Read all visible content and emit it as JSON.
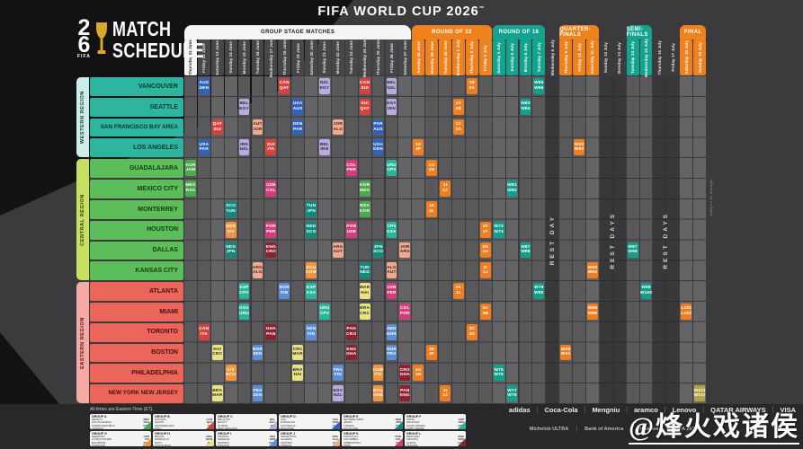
{
  "title": "FIFA WORLD CUP 2026",
  "title_tm": "™",
  "logo": {
    "number_top": "2",
    "number_bottom": "6",
    "fifa": "FIFA",
    "line1": "MATCH",
    "line2": "SCHEDULE"
  },
  "note": "All times are Eastern Time (ET).",
  "footnote": "Subject to change",
  "watermark": "@烽火戏诸侯",
  "colors": {
    "stage_orange": "#f0821e",
    "stage_teal": "#13a38f",
    "stage_white": "#f5f5f3",
    "group_date_box": "#47474a",
    "groups": {
      "A": "#4ea84e",
      "B": "#d8423c",
      "C": "#b9abdf",
      "D": "#2e62bc",
      "E": "#0f8b7e",
      "F": "#27b79b",
      "G": "#f0953c",
      "H": "#e9e381",
      "I": "#5a8ed8",
      "J": "#f2a98e",
      "K": "#d63b7c",
      "L": "#8c2130",
      "R32": "#f07d20",
      "R16": "#12a08d",
      "QF": "#f07d20",
      "SF": "#12a08d",
      "BRZ": "#f07d20",
      "FIN": "#b2a440"
    },
    "dark_text_groups": [
      "C",
      "H",
      "J"
    ],
    "regions": {
      "western": {
        "bar": "#cdecea",
        "barText": "#14443f",
        "cell": "#2eb5a0",
        "cellText": "#07382e"
      },
      "central": {
        "bar": "#c8e061",
        "barText": "#2c420b",
        "cell": "#5cbd5a",
        "cellText": "#12400f"
      },
      "eastern": {
        "bar": "#f4a9a2",
        "barText": "#571511",
        "cell": "#eb655b",
        "cellText": "#4b0f0c"
      }
    }
  },
  "schedule": {
    "columns": [
      "Thursday 11 June",
      "Friday 12 June",
      "Saturday 13 June",
      "Sunday 14 June",
      "Monday 15 June",
      "Tuesday 16 June",
      "Wednesday 17 June",
      "Thursday 18 June",
      "Friday 19 June",
      "Saturday 20 June",
      "Sunday 21 June",
      "Monday 22 June",
      "Tuesday 23 June",
      "Wednesday 24 June",
      "Thursday 25 June",
      "Friday 26 June",
      "Saturday 27 June",
      "Sunday 28 June",
      "Monday 29 June",
      "Tuesday 30 June",
      "Wednesday 1 July",
      "Thursday 2 July",
      "Friday 3 July",
      "Saturday 4 July",
      "Sunday 5 July",
      "Monday 6 July",
      "Tuesday 7 July",
      "Wednesday 8 July",
      "Thursday 9 July",
      "Friday 10 July",
      "Saturday 11 July",
      "Sunday 12 July",
      "Monday 13 July",
      "Tuesday 14 July",
      "Wednesday 15 July",
      "Thursday 16 July",
      "Friday 17 July",
      "Saturday 18 July",
      "Sunday 19 July"
    ],
    "weekend_cols": [
      2,
      3,
      9,
      10,
      16,
      17,
      23,
      24,
      30,
      31,
      37,
      38
    ],
    "highlight_col": 0,
    "stages": [
      {
        "label": "GROUP STAGE MATCHES",
        "from": 0,
        "to": 16,
        "style": "white"
      },
      {
        "label": "ROUND OF 32",
        "from": 17,
        "to": 22,
        "style": "orange"
      },
      {
        "label": "ROUND OF 16",
        "from": 23,
        "to": 26,
        "style": "teal"
      },
      {
        "label": "QUARTER-FINALS",
        "from": 28,
        "to": 30,
        "style": "orange"
      },
      {
        "label": "SEMI-FINALS",
        "from": 33,
        "to": 34,
        "style": "teal"
      },
      {
        "label": "FINAL",
        "from": 37,
        "to": 38,
        "style": "orange"
      }
    ],
    "rest": [
      {
        "label": "REST DAY",
        "from": 27,
        "to": 27
      },
      {
        "label": "REST DAYS",
        "from": 31,
        "to": 32
      },
      {
        "label": "REST DAYS",
        "from": 35,
        "to": 36
      }
    ],
    "regions": [
      {
        "key": "western",
        "label": "WESTERN REGION",
        "cities": [
          "VANCOUVER",
          "SEATTLE",
          "SAN FRANCISCO BAY AREA",
          "LOS ANGELES"
        ]
      },
      {
        "key": "central",
        "label": "CENTRAL REGION",
        "cities": [
          "GUADALAJARA",
          "MEXICO CITY",
          "MONTERREY",
          "HOUSTON",
          "DALLAS",
          "KANSAS CITY"
        ]
      },
      {
        "key": "eastern",
        "label": "EASTERN REGION",
        "cities": [
          "ATLANTA",
          "MIAMI",
          "TORONTO",
          "BOSTON",
          "PHILADELPHIA",
          "NEW YORK NEW JERSEY"
        ]
      }
    ],
    "cells": [
      [
        0,
        1,
        "D",
        "AUS",
        "DEN"
      ],
      [
        0,
        7,
        "B",
        "CAN",
        "QAT"
      ],
      [
        0,
        10,
        "C",
        "NZL",
        "EGY"
      ],
      [
        0,
        13,
        "B",
        "CAN",
        "SUI"
      ],
      [
        0,
        15,
        "C",
        "BEL",
        "NZL"
      ],
      [
        0,
        21,
        "R32",
        "1B",
        "2A"
      ],
      [
        0,
        26,
        "R16",
        "W85",
        "W86"
      ],
      [
        1,
        4,
        "C",
        "BEL",
        "EGY"
      ],
      [
        1,
        8,
        "D",
        "USA",
        "AUS"
      ],
      [
        1,
        13,
        "B",
        "SUI",
        "QAT"
      ],
      [
        1,
        15,
        "C",
        "EGY",
        "IRN"
      ],
      [
        1,
        20,
        "R32",
        "1A",
        "2B"
      ],
      [
        1,
        25,
        "R16",
        "W83",
        "W84"
      ],
      [
        2,
        2,
        "B",
        "QAT",
        "SUI"
      ],
      [
        2,
        5,
        "J",
        "AUT",
        "JOR"
      ],
      [
        2,
        8,
        "D",
        "DEN",
        "PAR"
      ],
      [
        2,
        11,
        "J",
        "JOR",
        "ALG"
      ],
      [
        2,
        14,
        "D",
        "PAR",
        "AUS"
      ],
      [
        2,
        20,
        "R32",
        "1C",
        "2D"
      ],
      [
        3,
        1,
        "D",
        "USA",
        "PAR"
      ],
      [
        3,
        4,
        "C",
        "IRN",
        "NZL"
      ],
      [
        3,
        6,
        "B",
        "SUI",
        "ITA"
      ],
      [
        3,
        10,
        "C",
        "BEL",
        "IRN"
      ],
      [
        3,
        14,
        "D",
        "USA",
        "DEN"
      ],
      [
        3,
        17,
        "R32",
        "1E",
        "2F"
      ],
      [
        3,
        29,
        "QF",
        "W90",
        "W92"
      ],
      [
        4,
        0,
        "A",
        "KOR",
        "JAM"
      ],
      [
        4,
        12,
        "K",
        "COL",
        "PER"
      ],
      [
        4,
        15,
        "F",
        "URU",
        "CPV"
      ],
      [
        4,
        18,
        "R32",
        "1G",
        "2H"
      ],
      [
        5,
        0,
        "A",
        "MEX",
        "RSA"
      ],
      [
        5,
        6,
        "K",
        "UZB",
        "COL"
      ],
      [
        5,
        13,
        "A",
        "KOR",
        "MEX"
      ],
      [
        5,
        19,
        "R32",
        "1I",
        "2J"
      ],
      [
        5,
        24,
        "R16",
        "W81",
        "W82"
      ],
      [
        6,
        3,
        "E",
        "SCO",
        "TUN"
      ],
      [
        6,
        9,
        "E",
        "TUN",
        "JPN"
      ],
      [
        6,
        13,
        "A",
        "RSA",
        "KOR"
      ],
      [
        6,
        18,
        "R32",
        "1K",
        "2L"
      ],
      [
        7,
        3,
        "G",
        "GER",
        "CIV"
      ],
      [
        7,
        6,
        "K",
        "POR",
        "PER"
      ],
      [
        7,
        9,
        "E",
        "NED",
        "SCO"
      ],
      [
        7,
        12,
        "K",
        "POR",
        "UZB"
      ],
      [
        7,
        15,
        "F",
        "CPV",
        "KSA"
      ],
      [
        7,
        22,
        "R32",
        "2E",
        "1F"
      ],
      [
        7,
        23,
        "R16",
        "W73",
        "W74"
      ],
      [
        8,
        3,
        "E",
        "NED",
        "JPN"
      ],
      [
        8,
        6,
        "L",
        "ENG",
        "CRO"
      ],
      [
        8,
        11,
        "J",
        "ARG",
        "AUT"
      ],
      [
        8,
        14,
        "E",
        "JPN",
        "SCO"
      ],
      [
        8,
        16,
        "J",
        "JOR",
        "ARG"
      ],
      [
        8,
        22,
        "R32",
        "2G",
        "1H"
      ],
      [
        8,
        25,
        "R16",
        "W87",
        "W88"
      ],
      [
        8,
        33,
        "SF",
        "W97",
        "W98"
      ],
      [
        9,
        5,
        "J",
        "ARG",
        "ALG"
      ],
      [
        9,
        9,
        "G",
        "ECU",
        "CUW"
      ],
      [
        9,
        13,
        "E",
        "TUN",
        "NED"
      ],
      [
        9,
        15,
        "J",
        "ALG",
        "AUT"
      ],
      [
        9,
        22,
        "R32",
        "2I",
        "1J"
      ],
      [
        9,
        30,
        "QF",
        "W93",
        "W94"
      ],
      [
        10,
        4,
        "F",
        "ESP",
        "CPV"
      ],
      [
        10,
        7,
        "I",
        "NOR",
        "FIN"
      ],
      [
        10,
        9,
        "F",
        "ESP",
        "KSA"
      ],
      [
        10,
        13,
        "H",
        "MAR",
        "HAI"
      ],
      [
        10,
        15,
        "K",
        "UZB",
        "PER"
      ],
      [
        10,
        20,
        "R32",
        "2K",
        "1L"
      ],
      [
        10,
        26,
        "R16",
        "W79",
        "W80"
      ],
      [
        10,
        34,
        "SF",
        "W99",
        "W100"
      ],
      [
        11,
        4,
        "F",
        "KSA",
        "URU"
      ],
      [
        11,
        10,
        "F",
        "URU",
        "CPV"
      ],
      [
        11,
        13,
        "H",
        "BRA",
        "CRC"
      ],
      [
        11,
        16,
        "K",
        "COL",
        "POR"
      ],
      [
        11,
        22,
        "R32",
        "3A",
        "3B"
      ],
      [
        11,
        30,
        "QF",
        "W95",
        "W96"
      ],
      [
        11,
        37,
        "BRZ",
        "L101",
        "L102"
      ],
      [
        12,
        1,
        "B",
        "CAN",
        "ITA"
      ],
      [
        12,
        6,
        "L",
        "GHA",
        "PAN"
      ],
      [
        12,
        9,
        "I",
        "SEN",
        "FIN"
      ],
      [
        12,
        12,
        "L",
        "PAN",
        "CRO"
      ],
      [
        12,
        15,
        "I",
        "SEN",
        "NOR"
      ],
      [
        12,
        21,
        "R32",
        "3C",
        "3D"
      ],
      [
        13,
        2,
        "H",
        "HAI",
        "CRC"
      ],
      [
        13,
        5,
        "I",
        "NOR",
        "SEN"
      ],
      [
        13,
        8,
        "H",
        "CRC",
        "MAR"
      ],
      [
        13,
        12,
        "L",
        "ENG",
        "GHA"
      ],
      [
        13,
        15,
        "I",
        "NOR",
        "FRA"
      ],
      [
        13,
        18,
        "R32",
        "3E",
        "3F"
      ],
      [
        13,
        28,
        "QF",
        "W89",
        "W91"
      ],
      [
        14,
        3,
        "G",
        "CIV",
        "ECU"
      ],
      [
        14,
        8,
        "H",
        "BRA",
        "HAI"
      ],
      [
        14,
        11,
        "I",
        "FRA",
        "FIN"
      ],
      [
        14,
        14,
        "G",
        "CUW",
        "CIV"
      ],
      [
        14,
        16,
        "L",
        "CRO",
        "GHA"
      ],
      [
        14,
        17,
        "R32",
        "3G",
        "3H"
      ],
      [
        14,
        23,
        "R16",
        "W75",
        "W76"
      ],
      [
        15,
        2,
        "H",
        "BRA",
        "MAR"
      ],
      [
        15,
        5,
        "I",
        "FRA",
        "SEN"
      ],
      [
        15,
        11,
        "C",
        "EGY",
        "NZL"
      ],
      [
        15,
        14,
        "G",
        "ECU",
        "GER"
      ],
      [
        15,
        16,
        "L",
        "PAN",
        "ENG"
      ],
      [
        15,
        19,
        "R32",
        "3I",
        "3J"
      ],
      [
        15,
        24,
        "R16",
        "W77",
        "W78"
      ],
      [
        15,
        38,
        "FIN",
        "W101",
        "W102"
      ]
    ]
  },
  "legend": {
    "groups": [
      {
        "label": "GROUP A",
        "g": "A",
        "teams": [
          [
            "MEXICO",
            "MEX"
          ],
          [
            "SOUTH AFRICA",
            "RSA"
          ],
          [
            "KOREA REPUBLIC",
            "KOR"
          ],
          [
            "JAMAICA",
            "JAM"
          ]
        ]
      },
      {
        "label": "GROUP B",
        "g": "B",
        "teams": [
          [
            "CANADA",
            "CAN"
          ],
          [
            "QATAR",
            "QAT"
          ],
          [
            "SWITZERLAND",
            "SUI"
          ],
          [
            "ITALY",
            "ITA"
          ]
        ]
      },
      {
        "label": "GROUP C",
        "g": "C",
        "teams": [
          [
            "BELGIUM",
            "BEL"
          ],
          [
            "EGYPT",
            "EGY"
          ],
          [
            "IR IRAN",
            "IRN"
          ],
          [
            "NEW ZEALAND",
            "NZL"
          ]
        ]
      },
      {
        "label": "GROUP D",
        "g": "D",
        "teams": [
          [
            "USA",
            "USA"
          ],
          [
            "PARAGUAY",
            "PAR"
          ],
          [
            "AUSTRALIA",
            "AUS"
          ],
          [
            "DENMARK",
            "DEN"
          ]
        ]
      },
      {
        "label": "GROUP E",
        "g": "E",
        "teams": [
          [
            "NETHERLANDS",
            "NED"
          ],
          [
            "JAPAN",
            "JPN"
          ],
          [
            "TUNISIA",
            "TUN"
          ],
          [
            "SCOTLAND",
            "SCO"
          ]
        ]
      },
      {
        "label": "GROUP F",
        "g": "F",
        "teams": [
          [
            "SPAIN",
            "ESP"
          ],
          [
            "URUGUAY",
            "URU"
          ],
          [
            "SAUDI ARABIA",
            "KSA"
          ],
          [
            "CABO VERDE",
            "CPV"
          ]
        ]
      },
      {
        "label": "GROUP G",
        "g": "G",
        "teams": [
          [
            "GERMANY",
            "GER"
          ],
          [
            "CÔTE D'IVOIRE",
            "CIV"
          ],
          [
            "ECUADOR",
            "ECU"
          ],
          [
            "CURAÇAO",
            "CUW"
          ]
        ]
      },
      {
        "label": "GROUP H",
        "g": "H",
        "teams": [
          [
            "BRAZIL",
            "BRA"
          ],
          [
            "MOROCCO",
            "MAR"
          ],
          [
            "HAITI",
            "HAI"
          ],
          [
            "COSTA RICA",
            "CRC"
          ]
        ]
      },
      {
        "label": "GROUP I",
        "g": "I",
        "teams": [
          [
            "FRANCE",
            "FRA"
          ],
          [
            "SENEGAL",
            "SEN"
          ],
          [
            "NORWAY",
            "NOR"
          ],
          [
            "FINLAND",
            "FIN"
          ]
        ]
      },
      {
        "label": "GROUP J",
        "g": "J",
        "teams": [
          [
            "ARGENTINA",
            "ARG"
          ],
          [
            "ALGERIA",
            "ALG"
          ],
          [
            "AUSTRIA",
            "AUT"
          ],
          [
            "JORDAN",
            "JOR"
          ]
        ]
      },
      {
        "label": "GROUP K",
        "g": "K",
        "teams": [
          [
            "PORTUGAL",
            "POR"
          ],
          [
            "COLOMBIA",
            "COL"
          ],
          [
            "UZBEKISTAN",
            "UZB"
          ],
          [
            "PERU",
            "PER"
          ]
        ]
      },
      {
        "label": "GROUP L",
        "g": "L",
        "teams": [
          [
            "ENGLAND",
            "ENG"
          ],
          [
            "CROATIA",
            "CRO"
          ],
          [
            "GHANA",
            "GHA"
          ],
          [
            "PANAMA",
            "PAN"
          ]
        ]
      }
    ]
  },
  "sponsors": {
    "row1": [
      "adidas",
      "Coca-Cola",
      "Mengniu",
      "aramco",
      "Lenovo",
      "QATAR AIRWAYS",
      "VISA"
    ],
    "row2": [
      "Michelob ULTRA",
      "Bank of America",
      "Hisense",
      "FIFA 26™"
    ]
  }
}
